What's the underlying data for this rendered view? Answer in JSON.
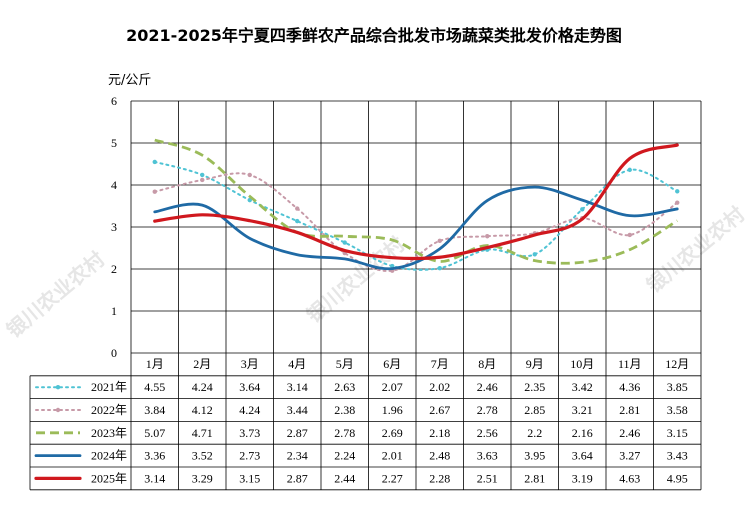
{
  "chart_data": {
    "type": "line",
    "title": "2021-2025年宁夏四季鲜农产品综合批发市场蔬菜类批发价格走势图",
    "ylabel": "元/公斤",
    "ylim": [
      0,
      6
    ],
    "yticks": [
      "0",
      "1",
      "2",
      "3",
      "4",
      "5",
      "6"
    ],
    "categories": [
      "1月",
      "2月",
      "3月",
      "4月",
      "5月",
      "6月",
      "7月",
      "8月",
      "9月",
      "10月",
      "11月",
      "12月"
    ],
    "grid": true,
    "legend": "table-left",
    "watermark": "银川农业农村",
    "series": [
      {
        "name": "2021年",
        "color": "#4fc3d4",
        "style": "dotted-markers",
        "values": [
          4.55,
          4.24,
          3.64,
          3.14,
          2.63,
          2.07,
          2.02,
          2.46,
          2.35,
          3.42,
          4.36,
          3.85
        ]
      },
      {
        "name": "2022年",
        "color": "#c79aa8",
        "style": "dotted-markers",
        "values": [
          3.84,
          4.12,
          4.24,
          3.44,
          2.38,
          1.96,
          2.67,
          2.78,
          2.85,
          3.21,
          2.81,
          3.58
        ]
      },
      {
        "name": "2023年",
        "color": "#9bbb59",
        "style": "dashed",
        "values": [
          5.07,
          4.71,
          3.73,
          2.87,
          2.78,
          2.69,
          2.18,
          2.56,
          2.2,
          2.16,
          2.46,
          3.15
        ]
      },
      {
        "name": "2024年",
        "color": "#1f6aa5",
        "style": "solid",
        "values": [
          3.36,
          3.52,
          2.73,
          2.34,
          2.24,
          2.01,
          2.48,
          3.63,
          3.95,
          3.64,
          3.27,
          3.43
        ]
      },
      {
        "name": "2025年",
        "color": "#d0181e",
        "style": "solid-thick",
        "values": [
          3.14,
          3.29,
          3.15,
          2.87,
          2.44,
          2.27,
          2.28,
          2.51,
          2.81,
          3.19,
          4.63,
          4.95
        ]
      }
    ]
  }
}
